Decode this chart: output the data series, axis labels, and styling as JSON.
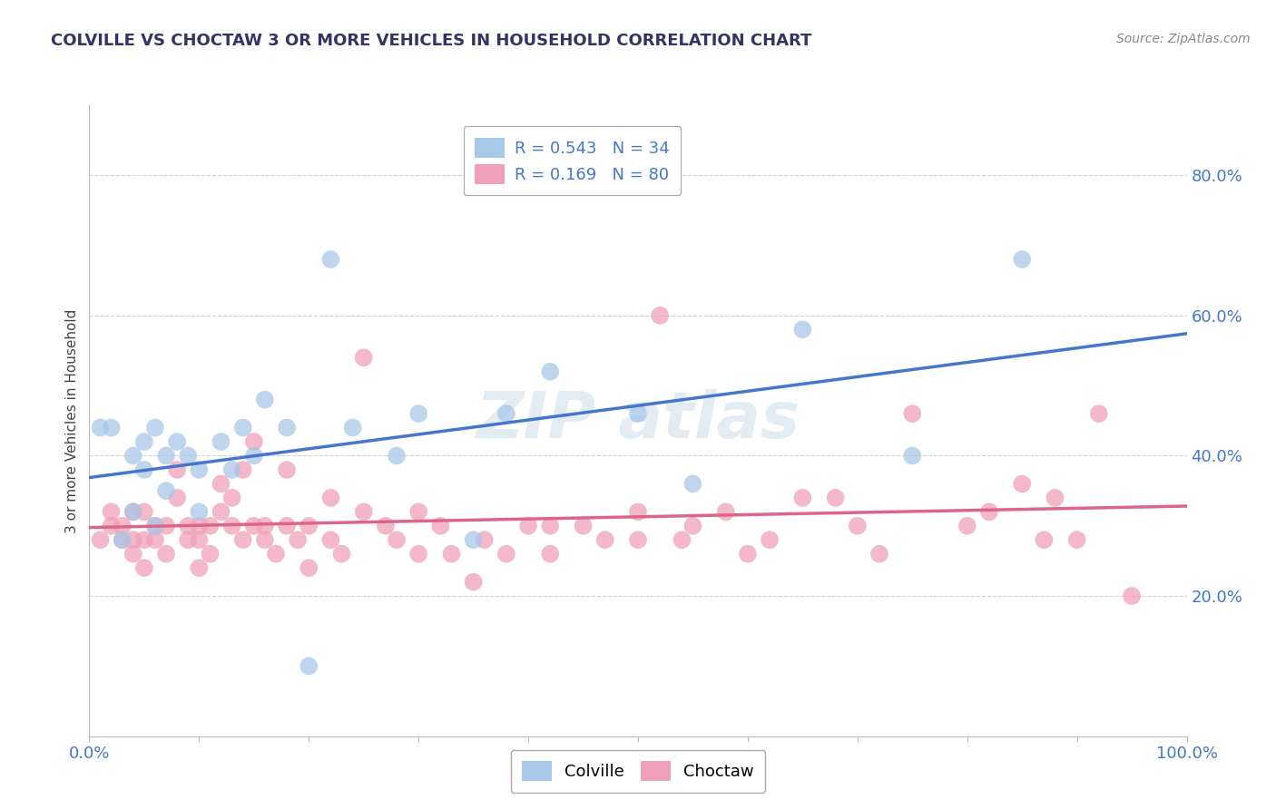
{
  "title": "COLVILLE VS CHOCTAW 3 OR MORE VEHICLES IN HOUSEHOLD CORRELATION CHART",
  "source_text": "Source: ZipAtlas.com",
  "ylabel": "3 or more Vehicles in Household",
  "ytick_labels": [
    "20.0%",
    "40.0%",
    "60.0%",
    "80.0%"
  ],
  "ytick_values": [
    0.2,
    0.4,
    0.6,
    0.8
  ],
  "legend_entry1": "Colville",
  "legend_entry2": "Choctaw",
  "R1": 0.543,
  "N1": 34,
  "R2": 0.169,
  "N2": 80,
  "colville_color": "#A8C8E8",
  "choctaw_color": "#F0A0B8",
  "colville_edge_color": "#5588CC",
  "choctaw_edge_color": "#E06080",
  "colville_line_color": "#4477CC",
  "choctaw_line_color": "#DD6688",
  "colville_x": [
    0.01,
    0.02,
    0.03,
    0.04,
    0.04,
    0.05,
    0.05,
    0.06,
    0.06,
    0.07,
    0.07,
    0.08,
    0.09,
    0.1,
    0.1,
    0.12,
    0.13,
    0.14,
    0.15,
    0.16,
    0.18,
    0.2,
    0.22,
    0.24,
    0.28,
    0.3,
    0.35,
    0.38,
    0.42,
    0.5,
    0.55,
    0.65,
    0.75,
    0.85
  ],
  "colville_y": [
    0.44,
    0.44,
    0.28,
    0.4,
    0.32,
    0.38,
    0.42,
    0.3,
    0.44,
    0.35,
    0.4,
    0.42,
    0.4,
    0.38,
    0.32,
    0.42,
    0.38,
    0.44,
    0.4,
    0.48,
    0.44,
    0.1,
    0.68,
    0.44,
    0.4,
    0.46,
    0.28,
    0.46,
    0.52,
    0.46,
    0.36,
    0.58,
    0.4,
    0.68
  ],
  "choctaw_x": [
    0.01,
    0.02,
    0.02,
    0.03,
    0.03,
    0.04,
    0.04,
    0.04,
    0.05,
    0.05,
    0.05,
    0.06,
    0.06,
    0.07,
    0.07,
    0.08,
    0.08,
    0.09,
    0.09,
    0.1,
    0.1,
    0.1,
    0.11,
    0.11,
    0.12,
    0.12,
    0.13,
    0.13,
    0.14,
    0.14,
    0.15,
    0.15,
    0.16,
    0.16,
    0.17,
    0.18,
    0.18,
    0.19,
    0.2,
    0.2,
    0.22,
    0.22,
    0.23,
    0.25,
    0.25,
    0.27,
    0.28,
    0.3,
    0.3,
    0.32,
    0.33,
    0.35,
    0.36,
    0.38,
    0.4,
    0.42,
    0.42,
    0.45,
    0.47,
    0.5,
    0.5,
    0.52,
    0.54,
    0.55,
    0.58,
    0.6,
    0.62,
    0.65,
    0.68,
    0.7,
    0.72,
    0.75,
    0.8,
    0.82,
    0.85,
    0.87,
    0.88,
    0.9,
    0.92,
    0.95
  ],
  "choctaw_y": [
    0.28,
    0.3,
    0.32,
    0.28,
    0.3,
    0.26,
    0.28,
    0.32,
    0.24,
    0.28,
    0.32,
    0.28,
    0.3,
    0.26,
    0.3,
    0.34,
    0.38,
    0.28,
    0.3,
    0.24,
    0.28,
    0.3,
    0.26,
    0.3,
    0.32,
    0.36,
    0.3,
    0.34,
    0.28,
    0.38,
    0.3,
    0.42,
    0.28,
    0.3,
    0.26,
    0.3,
    0.38,
    0.28,
    0.24,
    0.3,
    0.28,
    0.34,
    0.26,
    0.32,
    0.54,
    0.3,
    0.28,
    0.32,
    0.26,
    0.3,
    0.26,
    0.22,
    0.28,
    0.26,
    0.3,
    0.3,
    0.26,
    0.3,
    0.28,
    0.32,
    0.28,
    0.6,
    0.28,
    0.3,
    0.32,
    0.26,
    0.28,
    0.34,
    0.34,
    0.3,
    0.26,
    0.46,
    0.3,
    0.32,
    0.36,
    0.28,
    0.34,
    0.28,
    0.46,
    0.2
  ],
  "xlim": [
    0,
    1.0
  ],
  "ylim": [
    0,
    0.9
  ],
  "xtick_positions": [
    0,
    0.1,
    0.2,
    0.3,
    0.4,
    0.5,
    0.6,
    0.7,
    0.8,
    0.9,
    1.0
  ],
  "title_color": "#333366",
  "tick_color": "#4477CC",
  "watermark_text": "ZIP atlas",
  "background_color": "#FFFFFF",
  "grid_color": "#CCCCCC"
}
